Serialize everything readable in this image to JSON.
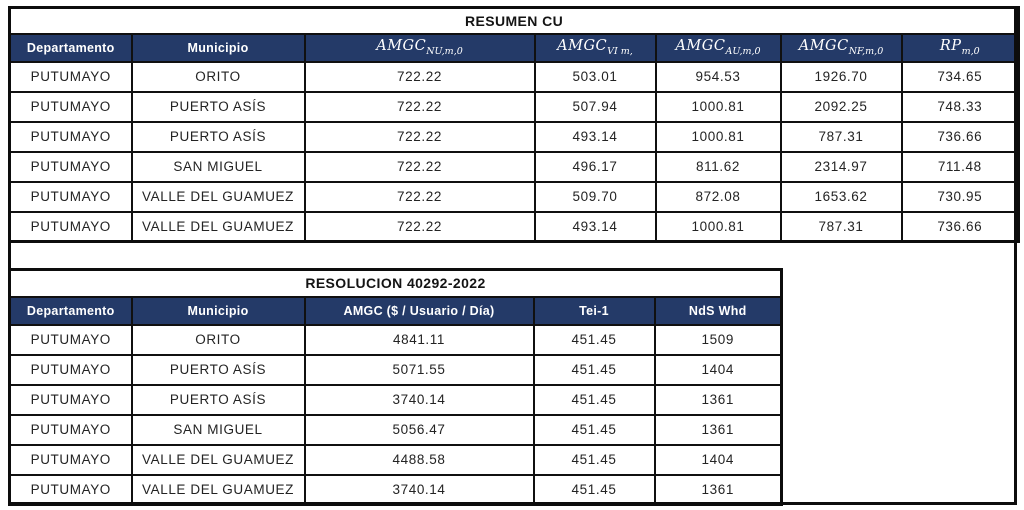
{
  "colors": {
    "header_bg": "#243a68",
    "header_text": "#ffffff",
    "grid_border": "#101010",
    "body_text": "#232323",
    "page_bg": "#ffffff"
  },
  "table1": {
    "title": "RESUMEN CU",
    "headers": [
      {
        "base": "Departamento",
        "sub": ""
      },
      {
        "base": "Municipio",
        "sub": ""
      },
      {
        "base": "AMGC",
        "sub": "NU,m,0"
      },
      {
        "base": "AMGC",
        "sub": "VI m,"
      },
      {
        "base": "AMGC",
        "sub": "AU,m,0"
      },
      {
        "base": "AMGC",
        "sub": "NF,m,0"
      },
      {
        "base": "RP",
        "sub": "m,0"
      }
    ],
    "rows": [
      [
        "PUTUMAYO",
        "ORITO",
        "722.22",
        "503.01",
        "954.53",
        "1926.70",
        "734.65"
      ],
      [
        "PUTUMAYO",
        "PUERTO ASÍS",
        "722.22",
        "507.94",
        "1000.81",
        "2092.25",
        "748.33"
      ],
      [
        "PUTUMAYO",
        "PUERTO ASÍS",
        "722.22",
        "493.14",
        "1000.81",
        "787.31",
        "736.66"
      ],
      [
        "PUTUMAYO",
        "SAN MIGUEL",
        "722.22",
        "496.17",
        "811.62",
        "2314.97",
        "711.48"
      ],
      [
        "PUTUMAYO",
        "VALLE DEL GUAMUEZ",
        "722.22",
        "509.70",
        "872.08",
        "1653.62",
        "730.95"
      ],
      [
        "PUTUMAYO",
        "VALLE DEL GUAMUEZ",
        "722.22",
        "493.14",
        "1000.81",
        "787.31",
        "736.66"
      ]
    ]
  },
  "table2": {
    "title": "RESOLUCION 40292-2022",
    "headers": [
      "Departamento",
      "Municipio",
      "AMGC ($ / Usuario / Día)",
      "Tei-1",
      "NdS Whd"
    ],
    "rows": [
      [
        "PUTUMAYO",
        "ORITO",
        "4841.11",
        "451.45",
        "1509"
      ],
      [
        "PUTUMAYO",
        "PUERTO ASÍS",
        "5071.55",
        "451.45",
        "1404"
      ],
      [
        "PUTUMAYO",
        "PUERTO ASÍS",
        "3740.14",
        "451.45",
        "1361"
      ],
      [
        "PUTUMAYO",
        "SAN MIGUEL",
        "5056.47",
        "451.45",
        "1361"
      ],
      [
        "PUTUMAYO",
        "VALLE DEL GUAMUEZ",
        "4488.58",
        "451.45",
        "1404"
      ],
      [
        "PUTUMAYO",
        "VALLE DEL GUAMUEZ",
        "3740.14",
        "451.45",
        "1361"
      ]
    ]
  }
}
